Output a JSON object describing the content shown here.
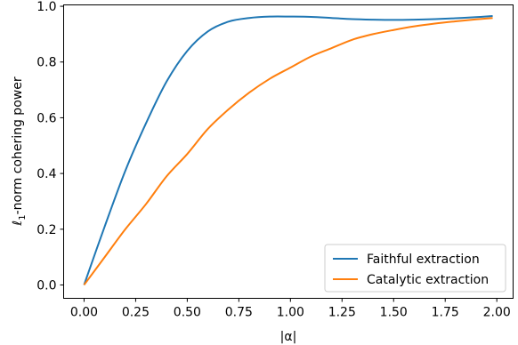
{
  "chart_data": {
    "type": "line",
    "xlabel": "|α|",
    "ylabel": {
      "prefix": "ℓ",
      "subscript": "1",
      "suffix": "-norm cohering power"
    },
    "xlim": [
      -0.099,
      2.079
    ],
    "ylim": [
      -0.048,
      1.005
    ],
    "xticks": [
      0.0,
      0.25,
      0.5,
      0.75,
      1.0,
      1.25,
      1.5,
      1.75,
      2.0
    ],
    "xtick_labels": [
      "0.00",
      "0.25",
      "0.50",
      "0.75",
      "1.00",
      "1.25",
      "1.50",
      "1.75",
      "2.00"
    ],
    "yticks": [
      0.0,
      0.2,
      0.4,
      0.6,
      0.8,
      1.0
    ],
    "ytick_labels": [
      "0.0",
      "0.2",
      "0.4",
      "0.6",
      "0.8",
      "1.0"
    ],
    "grid": false,
    "legend_position": "lower-right",
    "series": [
      {
        "name": "Faithful extraction",
        "color": "#1f77b4",
        "x": [
          0.0,
          0.1,
          0.2,
          0.3,
          0.4,
          0.5,
          0.6,
          0.7,
          0.8,
          0.9,
          1.0,
          1.1,
          1.2,
          1.3,
          1.4,
          1.5,
          1.6,
          1.7,
          1.8,
          1.9,
          1.98
        ],
        "y": [
          0.0,
          0.21,
          0.41,
          0.58,
          0.73,
          0.84,
          0.91,
          0.945,
          0.958,
          0.963,
          0.963,
          0.962,
          0.958,
          0.954,
          0.952,
          0.951,
          0.952,
          0.954,
          0.957,
          0.961,
          0.965
        ]
      },
      {
        "name": "Catalytic extraction",
        "color": "#ff7f0e",
        "x": [
          0.0,
          0.1,
          0.2,
          0.3,
          0.4,
          0.5,
          0.6,
          0.7,
          0.8,
          0.9,
          1.0,
          1.1,
          1.2,
          1.3,
          1.4,
          1.5,
          1.6,
          1.7,
          1.8,
          1.9,
          1.98
        ],
        "y": [
          0.0,
          0.1,
          0.2,
          0.29,
          0.39,
          0.47,
          0.56,
          0.63,
          0.69,
          0.74,
          0.78,
          0.82,
          0.85,
          0.88,
          0.9,
          0.915,
          0.928,
          0.938,
          0.946,
          0.953,
          0.958
        ]
      }
    ]
  }
}
